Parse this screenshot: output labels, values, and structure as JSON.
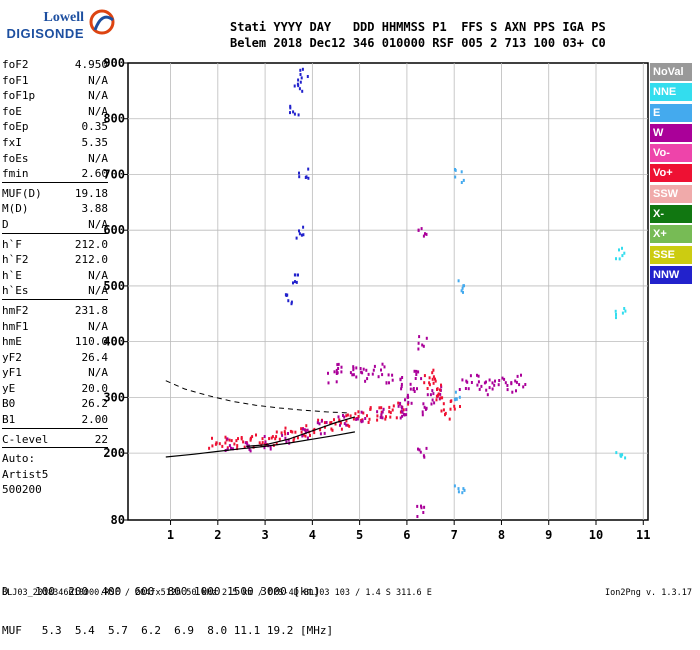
{
  "logo": {
    "line1": "Lowell",
    "line2": "DIGISONDE"
  },
  "header": {
    "row1": "Stati YYYY DAY   DDD HHMMSS P1  FFS S AXN PPS IGA PS",
    "row2": "Belem 2018 Dec12 346 010000 RSF 005 2 713 100 03+ C0"
  },
  "params": [
    {
      "label": "foF2",
      "value": "4.950"
    },
    {
      "label": "foF1",
      "value": "N/A"
    },
    {
      "label": "foF1p",
      "value": "N/A"
    },
    {
      "label": "foE",
      "value": "N/A"
    },
    {
      "label": "foEp",
      "value": "0.35"
    },
    {
      "label": "fxI",
      "value": "5.35"
    },
    {
      "label": "foEs",
      "value": "N/A"
    },
    {
      "label": "fmin",
      "value": "2.60"
    },
    {
      "sep": true
    },
    {
      "label": "MUF(D)",
      "value": "19.18"
    },
    {
      "label": "M(D)",
      "value": "3.88"
    },
    {
      "label": "D",
      "value": "N/A"
    },
    {
      "sep": true
    },
    {
      "label": "h`F",
      "value": "212.0"
    },
    {
      "label": "h`F2",
      "value": "212.0"
    },
    {
      "label": "h`E",
      "value": "N/A"
    },
    {
      "label": "h`Es",
      "value": "N/A"
    },
    {
      "sep": true
    },
    {
      "label": "hmF2",
      "value": "231.8"
    },
    {
      "label": "hmF1",
      "value": "N/A"
    },
    {
      "label": "hmE",
      "value": "110.0"
    },
    {
      "label": "yF2",
      "value": "26.4"
    },
    {
      "label": "yF1",
      "value": "N/A"
    },
    {
      "label": "yE",
      "value": "20.0"
    },
    {
      "label": "B0",
      "value": "26.2"
    },
    {
      "label": "B1",
      "value": "2.00"
    },
    {
      "sep": true
    },
    {
      "label": "C-level",
      "value": "22"
    },
    {
      "sep": true
    },
    {
      "label": "Auto:",
      "value": ""
    },
    {
      "label": "Artist5",
      "value": ""
    },
    {
      "label": "500200",
      "value": ""
    }
  ],
  "legend": [
    {
      "label": "NoVal",
      "color": "#999999"
    },
    {
      "label": "NNE",
      "color": "#33ddee"
    },
    {
      "label": "E",
      "color": "#44aaee"
    },
    {
      "label": "W",
      "color": "#aa0099"
    },
    {
      "label": "Vo-",
      "color": "#ee44aa"
    },
    {
      "label": "Vo+",
      "color": "#ee1133"
    },
    {
      "label": "SSW",
      "color": "#f0aaaa"
    },
    {
      "label": "X-",
      "color": "#117711"
    },
    {
      "label": "X+",
      "color": "#77bb55"
    },
    {
      "label": "SSE",
      "color": "#cccc11"
    },
    {
      "label": "NNW",
      "color": "#2222cc"
    }
  ],
  "bottom": {
    "row1": "D    100  200  400  600  800 1000 1500 3000 [km]",
    "row2": "MUF   5.3  5.4  5.7  6.2  6.9  8.0 11.1 19.2 [MHz]"
  },
  "footer": "BLJ03_2018346010000.RSF / 204fx512h 50 kHz 2.5 km / DPS-4D BLJ03 103 / 1.4 S 311.6 E",
  "version": "Ion2Png v. 1.3.17",
  "chart_data": {
    "type": "scatter",
    "x_ticks": [
      "1",
      "2",
      "3",
      "4",
      "5",
      "6",
      "7",
      "8",
      "9",
      "10",
      "11"
    ],
    "y_ticks": [
      "80",
      "200",
      "300",
      "400",
      "500",
      "600",
      "700",
      "800",
      "900"
    ],
    "xlim": [
      1,
      11
    ],
    "ylim": [
      80,
      900
    ],
    "grid": true,
    "profile_line": {
      "x": [
        0.9,
        1.5,
        2.0,
        2.5,
        3.0,
        3.5,
        4.0,
        4.5,
        4.9
      ],
      "y": [
        193,
        198,
        203,
        208,
        212,
        218,
        225,
        232,
        238
      ]
    },
    "trace_line": {
      "x": [
        2.6,
        3.0,
        3.5,
        4.0,
        4.5,
        4.9
      ],
      "y": [
        212,
        215,
        225,
        240,
        255,
        265
      ]
    },
    "dashed_line": {
      "x": [
        0.9,
        1.3,
        1.8,
        2.3,
        2.8,
        3.3,
        3.8,
        4.3,
        4.8
      ],
      "y": [
        330,
        315,
        303,
        293,
        286,
        281,
        277,
        274,
        272
      ]
    },
    "echo_groups": [
      {
        "x": [
          1.9,
          2.1,
          2.3,
          2.5,
          2.7,
          2.9,
          3.1,
          3.3,
          3.5,
          3.7,
          3.9,
          4.1,
          4.3,
          4.5,
          4.7,
          4.9,
          5.1,
          5.3,
          5.5,
          5.7,
          5.9
        ],
        "y": [
          222,
          220,
          221,
          223,
          224,
          222,
          226,
          230,
          235,
          240,
          245,
          250,
          255,
          258,
          262,
          265,
          268,
          272,
          275,
          278,
          280
        ],
        "color": "#ee1133"
      },
      {
        "x": [
          2.2,
          2.6,
          3.0,
          3.4,
          3.8,
          4.2,
          4.6,
          5.0,
          5.4,
          5.8
        ],
        "y": [
          218,
          219,
          222,
          228,
          238,
          248,
          258,
          266,
          270,
          276
        ],
        "color": "#aa0099"
      },
      {
        "x": [
          4.4,
          4.6,
          4.8,
          5.0,
          5.2,
          5.4,
          5.6,
          5.8
        ],
        "y": [
          340,
          350,
          355,
          345,
          340,
          350,
          338,
          330
        ],
        "color": "#aa0099"
      },
      {
        "x": [
          5.9,
          6.0,
          6.1,
          6.2,
          6.4,
          6.5,
          6.6
        ],
        "y": [
          280,
          300,
          320,
          340,
          280,
          300,
          310
        ],
        "color": "#aa0099"
      },
      {
        "x": [
          6.4,
          6.5,
          6.6,
          6.7,
          6.8,
          7.0
        ],
        "y": [
          330,
          340,
          320,
          300,
          275,
          290
        ],
        "color": "#ee1133"
      },
      {
        "x": [
          7.2,
          7.4,
          7.6,
          7.8,
          8.0,
          8.2,
          8.4
        ],
        "y": [
          325,
          330,
          320,
          330,
          325,
          320,
          330
        ],
        "color": "#aa0099"
      },
      {
        "x": [
          3.5,
          3.6,
          3.7,
          3.8
        ],
        "y": [
          480,
          520,
          600,
          700
        ],
        "color": "#2222cc"
      },
      {
        "x": [
          3.6,
          3.7,
          3.8
        ],
        "y": [
          820,
          860,
          880
        ],
        "color": "#2222cc"
      },
      {
        "x": [
          6.3,
          6.3,
          6.3,
          6.3
        ],
        "y": [
          100,
          200,
          400,
          600
        ],
        "color": "#aa0099"
      },
      {
        "x": [
          7.1,
          7.1,
          7.1,
          7.1
        ],
        "y": [
          140,
          300,
          500,
          700
        ],
        "color": "#44aaee"
      },
      {
        "x": [
          10.5,
          10.5,
          10.5
        ],
        "y": [
          200,
          450,
          560
        ],
        "color": "#33ddee"
      }
    ]
  }
}
